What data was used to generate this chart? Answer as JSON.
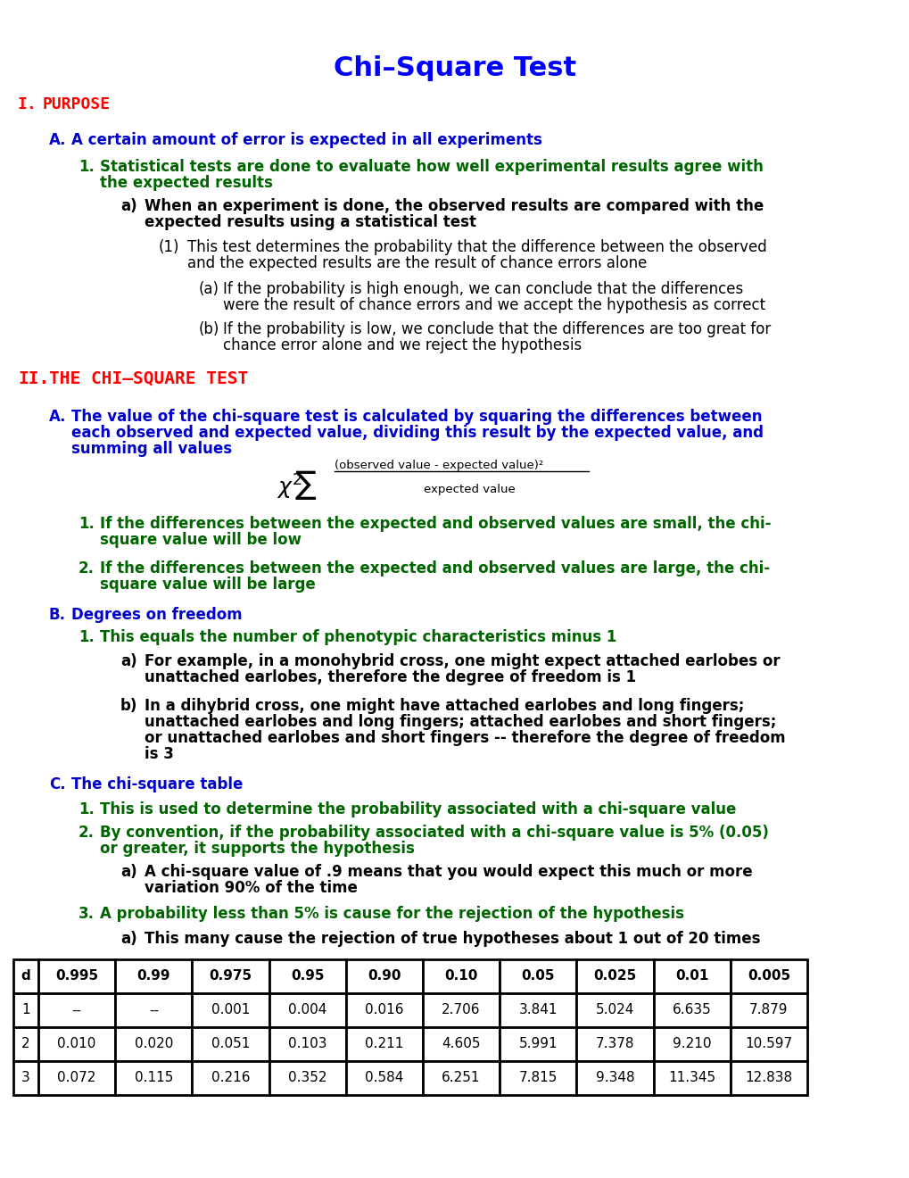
{
  "title": "Chi–Square Test",
  "title_color": "#0000FF",
  "bg_color": "#FFFFFF",
  "table_data": {
    "headers": [
      "d",
      "0.995",
      "0.99",
      "0.975",
      "0.95",
      "0.90",
      "0.10",
      "0.05",
      "0.025",
      "0.01",
      "0.005"
    ],
    "rows": [
      [
        "1",
        "--",
        "--",
        "0.001",
        "0.004",
        "0.016",
        "2.706",
        "3.841",
        "5.024",
        "6.635",
        "7.879"
      ],
      [
        "2",
        "0.010",
        "0.020",
        "0.051",
        "0.103",
        "0.211",
        "4.605",
        "5.991",
        "7.378",
        "9.210",
        "10.597"
      ],
      [
        "3",
        "0.072",
        "0.115",
        "0.216",
        "0.352",
        "0.584",
        "6.251",
        "7.815",
        "9.348",
        "11.345",
        "12.838"
      ]
    ]
  }
}
